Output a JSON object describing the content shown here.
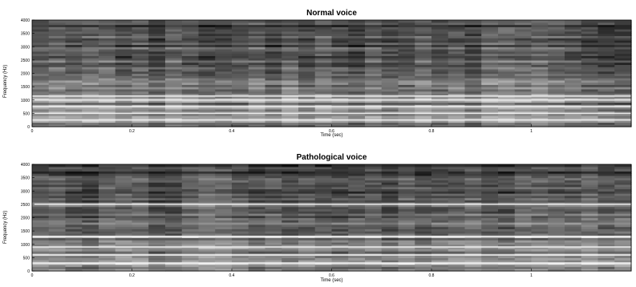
{
  "chart_data": [
    {
      "type": "heatmap",
      "title": "Normal voice",
      "xlabel": "Time (sec)",
      "ylabel": "Frequency (Hz)",
      "x_ticks": [
        "0",
        "0.2",
        "0.4",
        "0.6",
        "0.8",
        "1"
      ],
      "y_ticks": [
        "0",
        "500",
        "1000",
        "1500",
        "2000",
        "2500",
        "3000",
        "3500",
        "4000"
      ],
      "xlim": [
        0,
        1.2
      ],
      "ylim": [
        0,
        4000
      ],
      "colormap": "gray",
      "bright_bands_hz": [
        250,
        500,
        750,
        1000,
        1150
      ]
    },
    {
      "type": "heatmap",
      "title": "Pathological voice",
      "xlabel": "Time (sec)",
      "ylabel": "Frequency (Hz)",
      "x_ticks": [
        "0",
        "0.2",
        "0.4",
        "0.6",
        "0.8",
        "1"
      ],
      "y_ticks": [
        "0",
        "500",
        "1000",
        "1500",
        "2000",
        "2500",
        "3000",
        "3500",
        "4000"
      ],
      "xlim": [
        0,
        1.2
      ],
      "ylim": [
        0,
        4000
      ],
      "colormap": "gray",
      "bright_bands_hz": [
        300,
        600,
        900,
        1300,
        2500
      ]
    }
  ]
}
